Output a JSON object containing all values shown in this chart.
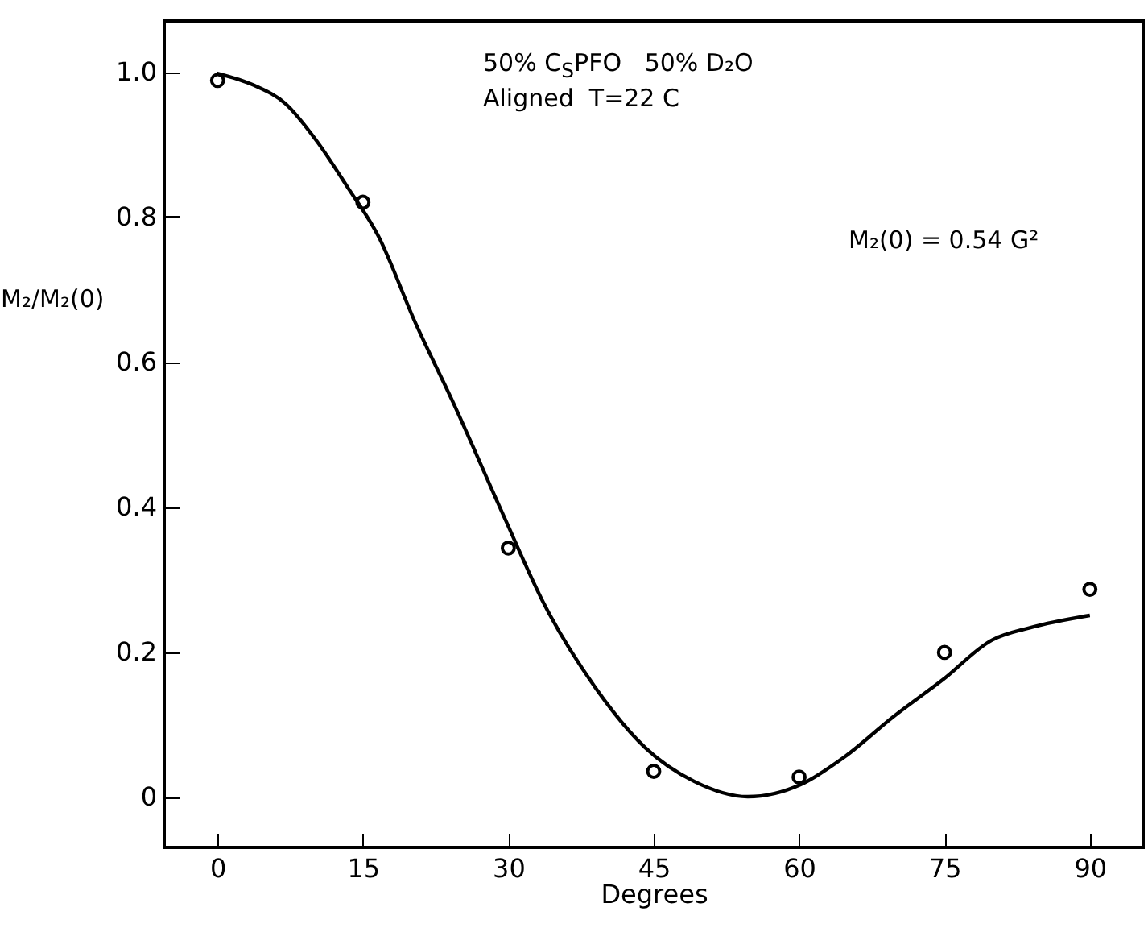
{
  "chart_data": {
    "type": "scatter",
    "xlabel": "Degrees",
    "ylabel": "M₂/M₂(0)",
    "annotations": [
      "50% C$_{S}$PFO   50% D₂O",
      "Aligned  T=22 C",
      "M₂(0) = 0.54 G²"
    ],
    "xlim": [
      -5.5,
      95.5
    ],
    "ylim": [
      -0.07,
      1.07
    ],
    "xticks": [
      0,
      15,
      30,
      45,
      60,
      75,
      90
    ],
    "yticks": [
      {
        "value": 0,
        "label": "0"
      },
      0.2,
      0.4,
      0.6,
      0.8,
      {
        "value": 1,
        "label": "1.0"
      }
    ],
    "grid": false,
    "series": [
      {
        "color": "#000000",
        "marker": "circle",
        "x": [
          0,
          15,
          30,
          45,
          60,
          75,
          90
        ],
        "values": [
          0.988,
          0.82,
          0.343,
          0.035,
          0.027,
          0.199,
          0.286
        ]
      },
      {
        "type": "line",
        "color": "#000000",
        "marker": "none",
        "line_style": "solid",
        "x": [
          -0.1,
          3.8,
          7.0,
          10.2,
          13.4,
          16.6,
          20.4,
          24.3,
          29.4,
          33.8,
          38.9,
          44.1,
          49.2,
          54.7,
          60.2,
          64.7,
          69.7,
          74.8,
          79.9,
          83.8,
          90
        ],
        "values": [
          0.998,
          0.981,
          0.956,
          0.905,
          0.841,
          0.773,
          0.654,
          0.544,
          0.391,
          0.263,
          0.152,
          0.068,
          0.021,
          0.0,
          0.017,
          0.055,
          0.11,
          0.161,
          0.216,
          0.233,
          0.25
        ]
      }
    ]
  }
}
